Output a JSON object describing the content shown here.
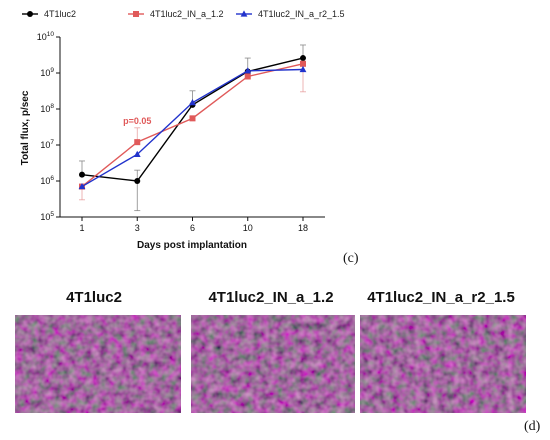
{
  "chart_data": {
    "type": "line",
    "xlabel": "Days post implantation",
    "ylabel": "Total flux, p/sec",
    "log_scale_y": true,
    "x_categories": [
      "1",
      "3",
      "6",
      "10",
      "18"
    ],
    "y_ticks": [
      {
        "value": 100000,
        "base": "10",
        "exp": "5"
      },
      {
        "value": 1000000,
        "base": "10",
        "exp": "6"
      },
      {
        "value": 10000000,
        "base": "10",
        "exp": "7"
      },
      {
        "value": 100000000,
        "base": "10",
        "exp": "8"
      },
      {
        "value": 1000000000,
        "base": "10",
        "exp": "9"
      },
      {
        "value": 10000000000,
        "base": "10",
        "exp": "10"
      }
    ],
    "ylim": [
      100000,
      10000000000
    ],
    "legend_position": "top",
    "annotation": {
      "text": "p=0.05",
      "x": "3",
      "color": "#e05a5a"
    },
    "series": [
      {
        "name": "4T1luc2",
        "color": "#000000",
        "marker": "circle",
        "values": [
          1500000,
          1000000,
          130000000,
          1100000000,
          2600000000
        ],
        "err_hi": [
          3600000,
          2000000,
          320000000,
          2600000000,
          6000000000
        ],
        "err_lo": [
          1500000,
          150000,
          130000000,
          1100000000,
          2600000000
        ]
      },
      {
        "name": "4T1luc2_IN_a_1.2",
        "color": "#e05a5a",
        "marker": "square",
        "values": [
          700000,
          12000000,
          55000000,
          800000000,
          1800000000
        ],
        "err_hi": [
          700000,
          30000000,
          55000000,
          800000000,
          1800000000
        ],
        "err_lo": [
          300000,
          12000000,
          55000000,
          800000000,
          300000000
        ]
      },
      {
        "name": "4T1luc2_IN_a_r2_1.5",
        "color": "#2233cc",
        "marker": "triangle",
        "values": [
          700000,
          5500000,
          150000000,
          1150000000,
          1250000000
        ],
        "err_hi": [
          700000,
          5500000,
          150000000,
          1150000000,
          1250000000
        ],
        "err_lo": [
          700000,
          5500000,
          150000000,
          1150000000,
          1250000000
        ]
      }
    ]
  },
  "panel_c_label": "(c)",
  "panel_d_label": "(d)",
  "histology": {
    "titles": [
      "4T1luc2",
      "4T1luc2_IN_a_1.2",
      "4T1luc2_IN_a_r2_1.5"
    ],
    "tissue_color": "#b44d9c"
  }
}
